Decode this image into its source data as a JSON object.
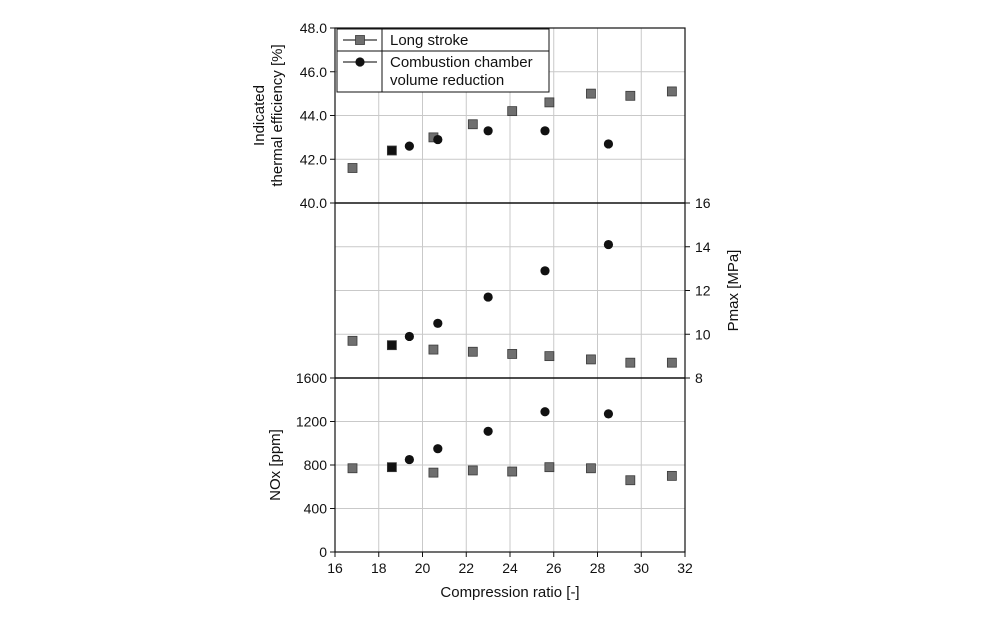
{
  "chart_data": {
    "type": "scatter",
    "xlabel": "Compression ratio [-]",
    "xlim": [
      16,
      32
    ],
    "xticks": [
      16,
      18,
      20,
      22,
      24,
      26,
      28,
      30,
      32
    ],
    "legend": {
      "placement": "top-left",
      "entries": [
        {
          "name": "Long stroke",
          "marker": "square",
          "color": "#6f6f6f"
        },
        {
          "name": "Combustion chamber volume reduction",
          "lines": [
            "Combustion chamber",
            "volume reduction"
          ],
          "marker": "circle",
          "color": "#111111"
        }
      ]
    },
    "panels": [
      {
        "id": "efficiency",
        "ylabel_lines": [
          "Indicated",
          "thermal efficiency [%]"
        ],
        "yaxis_side": "left",
        "ylim": [
          40,
          48
        ],
        "yticks": [
          "40.0",
          "42.0",
          "44.0",
          "46.0",
          "48.0"
        ],
        "series": [
          {
            "name": "Long stroke",
            "points": [
              [
                16.8,
                41.6
              ],
              [
                18.6,
                42.4
              ],
              [
                20.5,
                43.0
              ],
              [
                22.3,
                43.6
              ],
              [
                24.1,
                44.2
              ],
              [
                25.8,
                44.6
              ],
              [
                27.7,
                45.0
              ],
              [
                29.5,
                44.9
              ],
              [
                31.4,
                45.1
              ]
            ]
          },
          {
            "name": "Combustion chamber volume reduction",
            "points": [
              [
                19.4,
                42.6
              ],
              [
                20.7,
                42.9
              ],
              [
                23.0,
                43.3
              ],
              [
                25.6,
                43.3
              ],
              [
                28.5,
                42.7
              ]
            ]
          }
        ]
      },
      {
        "id": "pmax",
        "ylabel_lines": [
          "Pmax [MPa]"
        ],
        "yaxis_side": "right",
        "ylim": [
          8,
          16
        ],
        "yticks": [
          "8",
          "10",
          "12",
          "14",
          "16"
        ],
        "series": [
          {
            "name": "Long stroke",
            "points": [
              [
                16.8,
                9.7
              ],
              [
                18.6,
                9.5
              ],
              [
                20.5,
                9.3
              ],
              [
                22.3,
                9.2
              ],
              [
                24.1,
                9.1
              ],
              [
                25.8,
                9.0
              ],
              [
                27.7,
                8.85
              ],
              [
                29.5,
                8.7
              ],
              [
                31.4,
                8.7
              ]
            ]
          },
          {
            "name": "Combustion chamber volume reduction",
            "points": [
              [
                19.4,
                9.9
              ],
              [
                20.7,
                10.5
              ],
              [
                23.0,
                11.7
              ],
              [
                25.6,
                12.9
              ],
              [
                28.5,
                14.1
              ]
            ]
          }
        ]
      },
      {
        "id": "nox",
        "ylabel_lines": [
          "NOx [ppm]"
        ],
        "yaxis_side": "left",
        "ylim": [
          0,
          1600
        ],
        "yticks": [
          "0",
          "400",
          "800",
          "1200",
          "1600"
        ],
        "series": [
          {
            "name": "Long stroke",
            "points": [
              [
                16.8,
                770
              ],
              [
                18.6,
                780
              ],
              [
                20.5,
                730
              ],
              [
                22.3,
                750
              ],
              [
                24.1,
                740
              ],
              [
                25.8,
                780
              ],
              [
                27.7,
                770
              ],
              [
                29.5,
                660
              ],
              [
                31.4,
                700
              ]
            ]
          },
          {
            "name": "Combustion chamber volume reduction",
            "points": [
              [
                19.4,
                850
              ],
              [
                20.7,
                950
              ],
              [
                23.0,
                1110
              ],
              [
                25.6,
                1290
              ],
              [
                28.5,
                1270
              ]
            ]
          }
        ]
      }
    ]
  }
}
